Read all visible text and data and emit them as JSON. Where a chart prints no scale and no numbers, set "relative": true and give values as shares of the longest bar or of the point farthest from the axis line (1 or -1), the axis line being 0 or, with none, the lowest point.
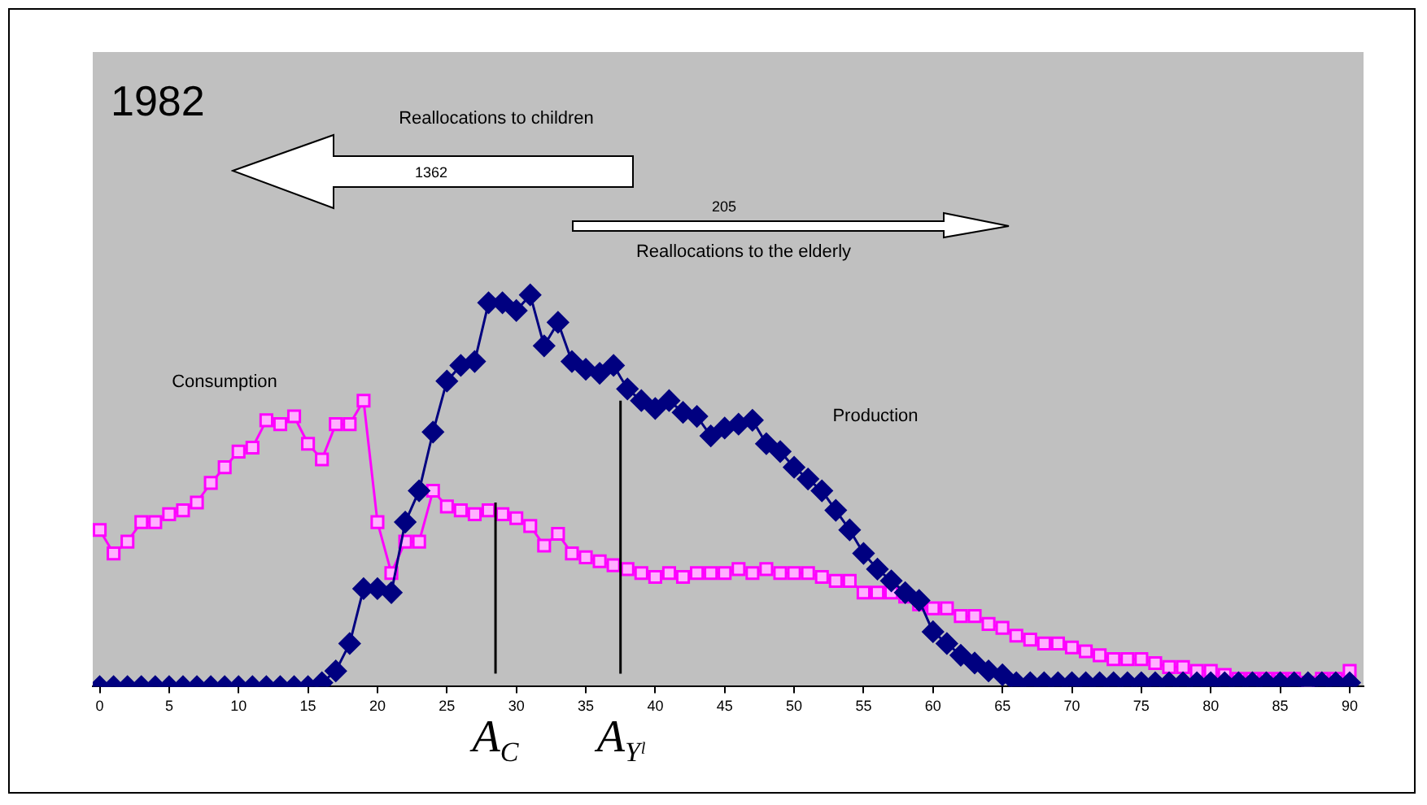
{
  "chart_data": {
    "type": "line",
    "relative": true,
    "x": [
      0,
      1,
      2,
      3,
      4,
      5,
      6,
      7,
      8,
      9,
      10,
      11,
      12,
      13,
      14,
      15,
      16,
      17,
      18,
      19,
      20,
      21,
      22,
      23,
      24,
      25,
      26,
      27,
      28,
      29,
      30,
      31,
      32,
      33,
      34,
      35,
      36,
      37,
      38,
      39,
      40,
      41,
      42,
      43,
      44,
      45,
      46,
      47,
      48,
      49,
      50,
      51,
      52,
      53,
      54,
      55,
      56,
      57,
      58,
      59,
      60,
      61,
      62,
      63,
      64,
      65,
      66,
      67,
      68,
      69,
      70,
      71,
      72,
      73,
      74,
      75,
      76,
      77,
      78,
      79,
      80,
      81,
      82,
      83,
      84,
      85,
      86,
      87,
      88,
      89,
      90
    ],
    "xlim": [
      -0.5,
      91
    ],
    "xticks": [
      0,
      5,
      10,
      15,
      20,
      25,
      30,
      35,
      40,
      45,
      50,
      55,
      60,
      65,
      70,
      75,
      80,
      85,
      90
    ],
    "series": [
      {
        "name": "Production",
        "color": "#000080",
        "marker": "diamond",
        "values": [
          0,
          0,
          0,
          0,
          0,
          0,
          0,
          0,
          0,
          0,
          0,
          0,
          0,
          0,
          0,
          0,
          0.01,
          0.04,
          0.11,
          0.25,
          0.25,
          0.24,
          0.42,
          0.5,
          0.65,
          0.78,
          0.82,
          0.83,
          0.98,
          0.98,
          0.96,
          1,
          0.87,
          0.93,
          0.83,
          0.81,
          0.8,
          0.82,
          0.76,
          0.73,
          0.71,
          0.73,
          0.7,
          0.69,
          0.64,
          0.66,
          0.67,
          0.68,
          0.62,
          0.6,
          0.56,
          0.53,
          0.5,
          0.45,
          0.4,
          0.34,
          0.3,
          0.27,
          0.24,
          0.22,
          0.14,
          0.11,
          0.08,
          0.06,
          0.04,
          0.03,
          0.01,
          0.01,
          0.01,
          0.01,
          0.01,
          0.01,
          0.01,
          0.01,
          0.01,
          0.01,
          0.01,
          0.01,
          0.01,
          0.01,
          0.01,
          0.01,
          0.01,
          0.01,
          0.01,
          0.01,
          0.01,
          0.01,
          0.01,
          0.01,
          0.01
        ]
      },
      {
        "name": "Consumption",
        "color": "#ff00ff",
        "marker": "square",
        "values": [
          0.4,
          0.34,
          0.37,
          0.42,
          0.42,
          0.44,
          0.45,
          0.47,
          0.52,
          0.56,
          0.6,
          0.61,
          0.68,
          0.67,
          0.69,
          0.62,
          0.58,
          0.67,
          0.67,
          0.73,
          0.42,
          0.29,
          0.37,
          0.37,
          0.5,
          0.46,
          0.45,
          0.44,
          0.45,
          0.44,
          0.43,
          0.41,
          0.36,
          0.39,
          0.34,
          0.33,
          0.32,
          0.31,
          0.3,
          0.29,
          0.28,
          0.29,
          0.28,
          0.29,
          0.29,
          0.29,
          0.3,
          0.29,
          0.3,
          0.29,
          0.29,
          0.29,
          0.28,
          0.27,
          0.27,
          0.24,
          0.24,
          0.24,
          0.23,
          0.21,
          0.2,
          0.2,
          0.18,
          0.18,
          0.16,
          0.15,
          0.13,
          0.12,
          0.11,
          0.11,
          0.1,
          0.09,
          0.08,
          0.07,
          0.07,
          0.07,
          0.06,
          0.05,
          0.05,
          0.04,
          0.04,
          0.03,
          0.02,
          0.02,
          0.02,
          0.02,
          0.02,
          0.01,
          0.02,
          0.02,
          0.04
        ]
      }
    ],
    "ref_lines": [
      {
        "axis": "x",
        "value": 28.5,
        "label": "A$_{C}$",
        "color": "#000000"
      },
      {
        "axis": "x",
        "value": 37.5,
        "label": "A$_{Yˡ}$",
        "color": "#000000"
      }
    ],
    "annotations": [
      "1982",
      "Reallocations to children",
      "1362",
      "205",
      "Reallocations to the elderly"
    ]
  }
}
